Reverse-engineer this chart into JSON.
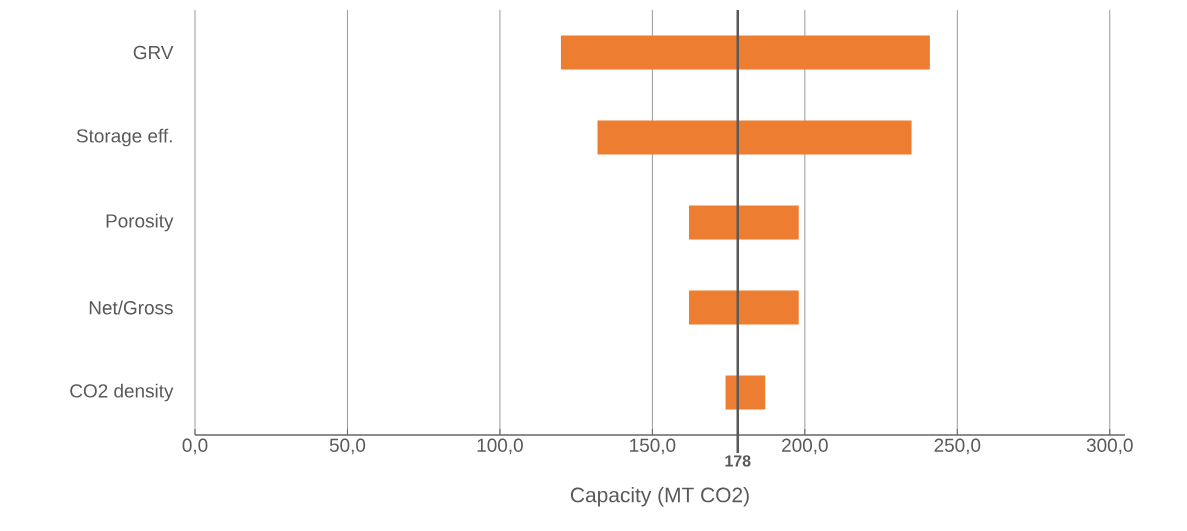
{
  "chart_data": {
    "type": "bar",
    "orientation": "horizontal",
    "xlabel": "Capacity (MT CO2)",
    "categories": [
      "GRV",
      "Storage eff.",
      "Porosity",
      "Net/Gross",
      "CO2 density"
    ],
    "base": [
      120,
      132,
      162,
      162,
      174
    ],
    "values": [
      121,
      103,
      36,
      36,
      13
    ],
    "color": "#ed7d31",
    "xlim": [
      0,
      305
    ],
    "xticks": [
      {
        "value": 0,
        "label": "0,0"
      },
      {
        "value": 50,
        "label": "50,0"
      },
      {
        "value": 100,
        "label": "100,0"
      },
      {
        "value": 150,
        "label": "150,0"
      },
      {
        "value": 200,
        "label": "200,0"
      },
      {
        "value": 250,
        "label": "250,0"
      },
      {
        "value": 300,
        "label": "300,0"
      }
    ],
    "grid": "x",
    "ref_lines": [
      {
        "axis": "x",
        "value": 178,
        "label": "178",
        "color": "#595959"
      }
    ]
  }
}
